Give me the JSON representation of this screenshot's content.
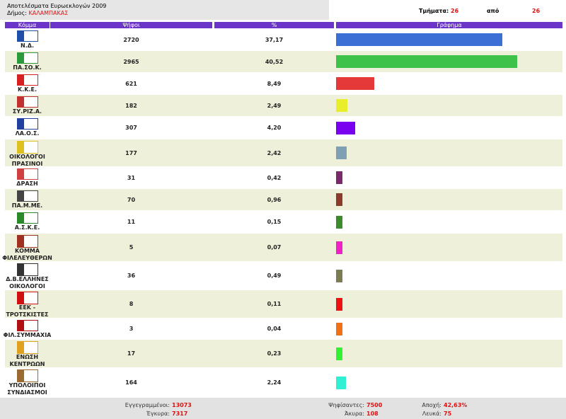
{
  "header": {
    "title": "Αποτελέσματα Ευρωεκλογών 2009",
    "municipality_label": "Δήμος:",
    "municipality": "ΚΑΛΑΜΠΑΚΑΣ",
    "sections_label": "Τμήματα:",
    "sections_counted": 26,
    "of_label": "από",
    "sections_total": 26
  },
  "table": {
    "columns": [
      "Κόμμα",
      "Ψήφοι",
      "%",
      "Γράφημα"
    ],
    "rows": [
      {
        "party": "Ν.Δ.",
        "votes": 2720,
        "percent": {
          "value": 37.17,
          "label": "37,17"
        },
        "color": "#3b6fd6"
      },
      {
        "party": "ΠΑ.ΣΟ.Κ.",
        "votes": 2965,
        "percent": {
          "value": 40.52,
          "label": "40,52"
        },
        "color": "#3ec24a"
      },
      {
        "party": "Κ.Κ.Ε.",
        "votes": 621,
        "percent": {
          "value": 8.49,
          "label": "8,49"
        },
        "color": "#e53838"
      },
      {
        "party": "ΣΥ.ΡΙΖ.Α.",
        "votes": 182,
        "percent": {
          "value": 2.49,
          "label": "2,49"
        },
        "color": "#e8ee2a"
      },
      {
        "party": "ΛΑ.Ο.Σ.",
        "votes": 307,
        "percent": {
          "value": 4.2,
          "label": "4,20"
        },
        "color": "#7a00f0"
      },
      {
        "party": "ΟΙΚΟΛΟΓΟΙ\nΠΡΑΣΙΝΟΙ",
        "votes": 177,
        "percent": {
          "value": 2.42,
          "label": "2,42"
        },
        "color": "#7f9fb4"
      },
      {
        "party": "ΔΡΑΣΗ",
        "votes": 31,
        "percent": {
          "value": 0.42,
          "label": "0,42"
        },
        "color": "#7a2a6c"
      },
      {
        "party": "ΠΑ.Μ.ΜΕ.",
        "votes": 70,
        "percent": {
          "value": 0.96,
          "label": "0,96"
        },
        "color": "#8c3a2c"
      },
      {
        "party": "Α.Σ.Κ.Ε.",
        "votes": 11,
        "percent": {
          "value": 0.15,
          "label": "0,15"
        },
        "color": "#3a8c2a"
      },
      {
        "party": "ΚΟΜΜΑ\nΦΙΛΕΛΕΥΘΕΡΩΝ",
        "votes": 5,
        "percent": {
          "value": 0.07,
          "label": "0,07"
        },
        "color": "#f020c4"
      },
      {
        "party": "Δ.Β.ΕΛΛΗΝΕΣ\nΟΙΚΟΛΟΓΟΙ",
        "votes": 36,
        "percent": {
          "value": 0.49,
          "label": "0,49"
        },
        "color": "#7c7c52"
      },
      {
        "party": "ΕΕΚ -\nΤΡΟΤΣΚΙΣΤΕΣ",
        "votes": 8,
        "percent": {
          "value": 0.11,
          "label": "0,11"
        },
        "color": "#f01212"
      },
      {
        "party": "ΦΙΛ.ΣΥΜΜΑΧΙΑ",
        "votes": 3,
        "percent": {
          "value": 0.04,
          "label": "0,04"
        },
        "color": "#f07214"
      },
      {
        "party": "ΕΝΩΣΗ\nΚΕΝΤΡΩΩΝ",
        "votes": 17,
        "percent": {
          "value": 0.23,
          "label": "0,23"
        },
        "color": "#34f034"
      },
      {
        "party": "ΥΠΟΛΟΙΠΟΙ\nΣΥΝΔΙΑΣΜΟΙ",
        "votes": 164,
        "percent": {
          "value": 2.24,
          "label": "2,24"
        },
        "color": "#30f0d4"
      }
    ]
  },
  "footer": {
    "registered_label": "Εγγεγραμμένοι:",
    "registered": 13073,
    "valid_label": "Έγκυρα:",
    "valid": 7317,
    "voted_label": "Ψηφίσαντες:",
    "voted": 7500,
    "invalid_label": "Άκυρα:",
    "invalid": 108,
    "abstention_label": "Αποχή:",
    "abstention": "42,63%",
    "blank_label": "Λευκά:",
    "blank": 75
  }
}
